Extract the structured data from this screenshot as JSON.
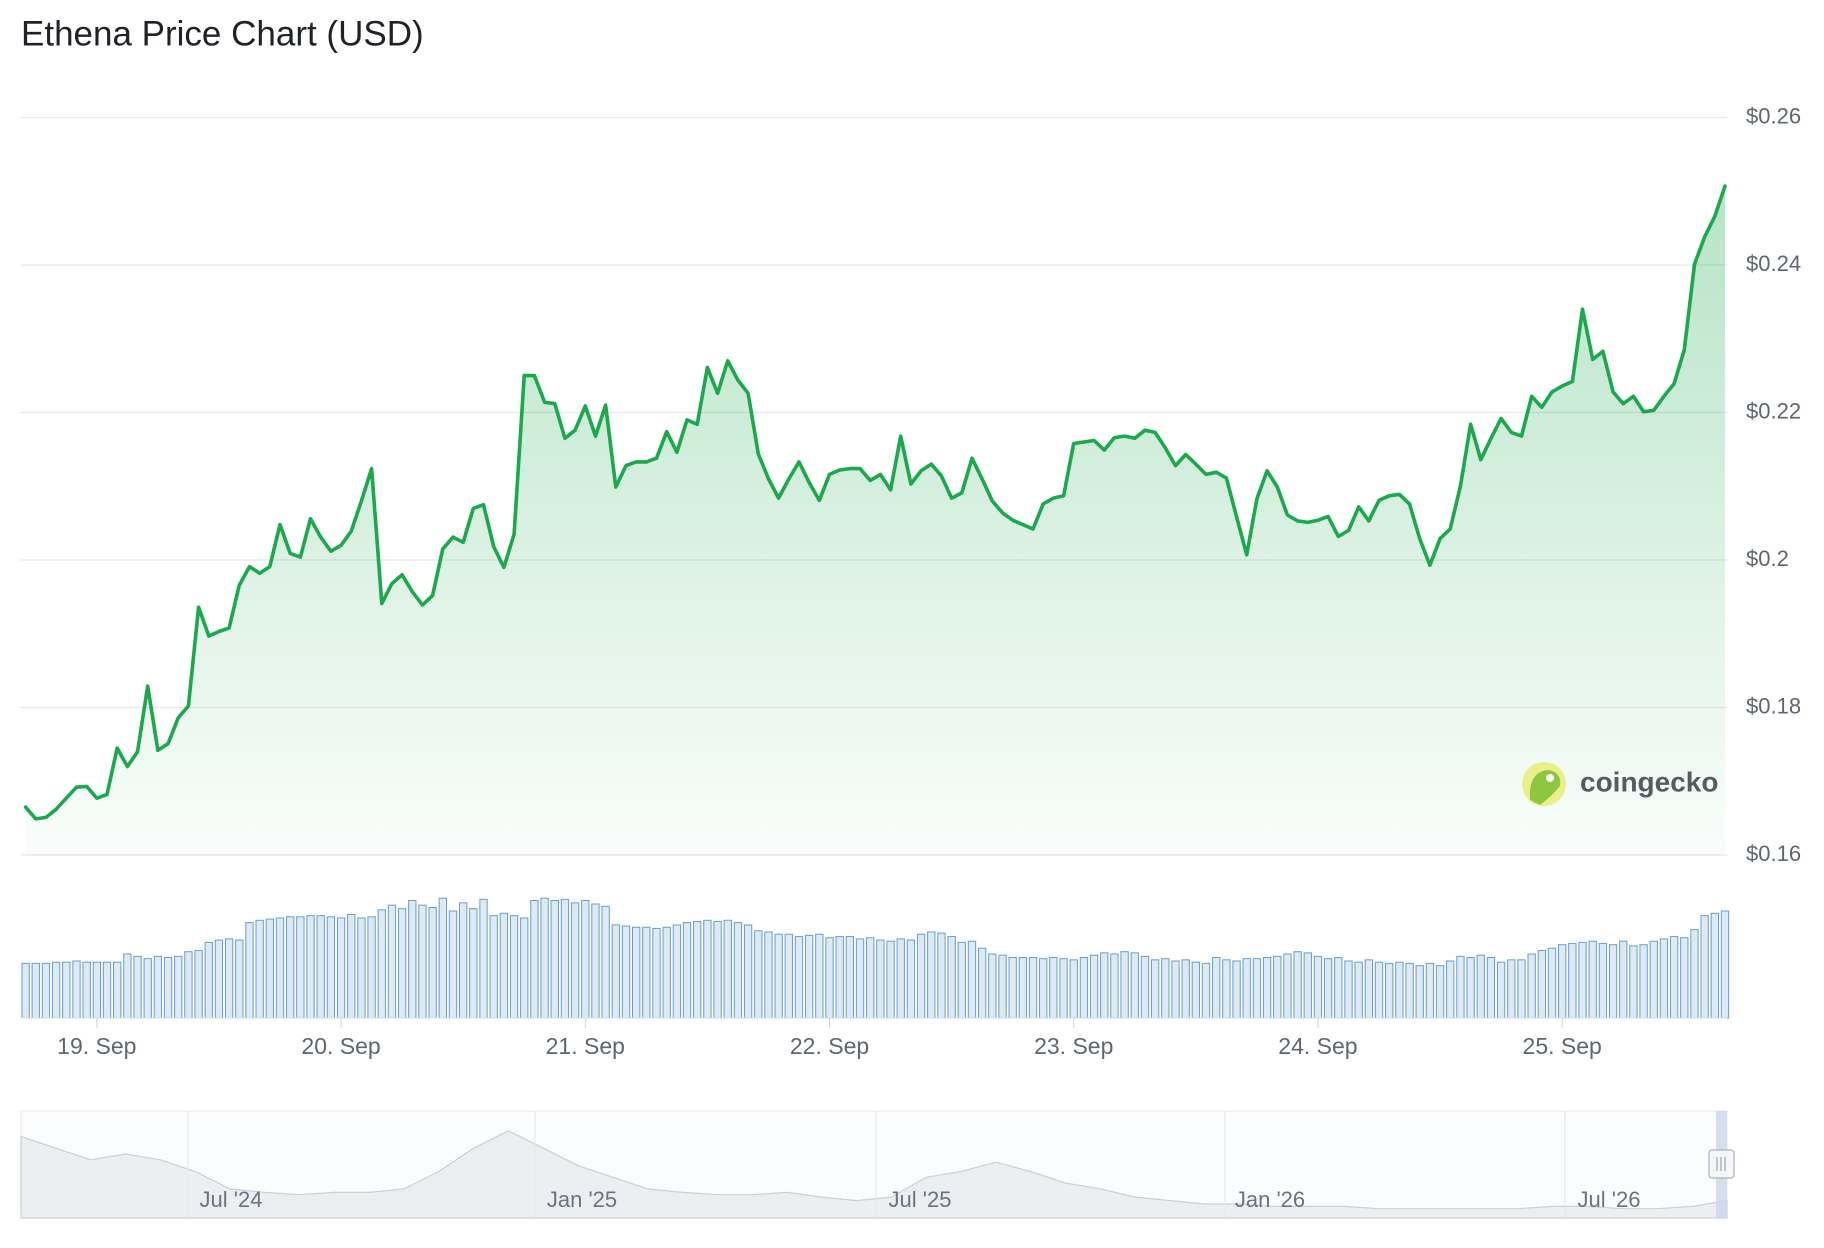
{
  "chart_data": {
    "type": "line",
    "title": "Ethena Price Chart (USD)",
    "categories": [
      null,
      null,
      null,
      null,
      null,
      null,
      null,
      "19. Sep",
      null,
      null,
      null,
      null,
      null,
      null,
      null,
      null,
      null,
      null,
      null,
      null,
      null,
      null,
      null,
      null,
      null,
      null,
      null,
      null,
      null,
      null,
      null,
      "20. Sep",
      null,
      null,
      null,
      null,
      null,
      null,
      null,
      null,
      null,
      null,
      null,
      null,
      null,
      null,
      null,
      null,
      null,
      null,
      null,
      null,
      null,
      null,
      null,
      "21. Sep",
      null,
      null,
      null,
      null,
      null,
      null,
      null,
      null,
      null,
      null,
      null,
      null,
      null,
      null,
      null,
      null,
      null,
      null,
      null,
      null,
      null,
      null,
      null,
      "22. Sep",
      null,
      null,
      null,
      null,
      null,
      null,
      null,
      null,
      null,
      null,
      null,
      null,
      null,
      null,
      null,
      null,
      null,
      null,
      null,
      null,
      null,
      null,
      null,
      "23. Sep",
      null,
      null,
      null,
      null,
      null,
      null,
      null,
      null,
      null,
      null,
      null,
      null,
      null,
      null,
      null,
      null,
      null,
      null,
      null,
      null,
      null,
      null,
      null,
      "24. Sep",
      null,
      null,
      null,
      null,
      null,
      null,
      null,
      null,
      null,
      null,
      null,
      null,
      null,
      null,
      null,
      null,
      null,
      null,
      null,
      null,
      null,
      null,
      null,
      "25. Sep",
      null,
      null,
      null,
      null,
      null,
      null,
      null,
      null,
      null,
      null,
      null,
      null,
      null,
      null,
      null,
      null
    ],
    "series": [
      {
        "color": "#1ba94c",
        "values": [
          0.1665,
          0.1649,
          0.1651,
          0.1662,
          0.1677,
          0.1692,
          0.1693,
          0.1677,
          0.1682,
          0.1745,
          0.172,
          0.174,
          0.1829,
          0.1742,
          0.1751,
          0.1786,
          0.1802,
          0.1936,
          0.1897,
          0.1903,
          0.1908,
          0.1966,
          0.1991,
          0.1982,
          0.1991,
          0.2048,
          0.2009,
          0.2004,
          0.2056,
          0.2031,
          0.2012,
          0.202,
          0.2039,
          0.208,
          0.2124,
          0.1941,
          0.1968,
          0.198,
          0.1957,
          0.1939,
          0.1952,
          0.2015,
          0.2031,
          0.2024,
          0.207,
          0.2075,
          0.2018,
          0.199,
          0.2035,
          0.225,
          0.225,
          0.2214,
          0.2212,
          0.2165,
          0.2176,
          0.2209,
          0.2168,
          0.221,
          0.2099,
          0.2128,
          0.2133,
          0.2133,
          0.2138,
          0.2174,
          0.2146,
          0.219,
          0.2184,
          0.2261,
          0.2226,
          0.227,
          0.2244,
          0.2226,
          0.2144,
          0.211,
          0.2084,
          0.211,
          0.2133,
          0.2105,
          0.2081,
          0.2116,
          0.2122,
          0.2124,
          0.2124,
          0.2108,
          0.2116,
          0.2095,
          0.2168,
          0.2103,
          0.2121,
          0.213,
          0.2114,
          0.2084,
          0.2091,
          0.2138,
          0.211,
          0.208,
          0.2064,
          0.2054,
          0.2048,
          0.2042,
          0.2076,
          0.2084,
          0.2087,
          0.2158,
          0.216,
          0.2162,
          0.2149,
          0.2166,
          0.2168,
          0.2165,
          0.2176,
          0.2173,
          0.2152,
          0.2128,
          0.2143,
          0.213,
          0.2116,
          0.2119,
          0.2111,
          0.2059,
          0.2007,
          0.2083,
          0.2121,
          0.2099,
          0.2061,
          0.2053,
          0.2051,
          0.2054,
          0.2059,
          0.2032,
          0.204,
          0.2072,
          0.2053,
          0.2081,
          0.2087,
          0.2089,
          0.2076,
          0.2029,
          0.1993,
          0.2029,
          0.2042,
          0.21,
          0.2184,
          0.2136,
          0.2165,
          0.2192,
          0.2173,
          0.2168,
          0.2222,
          0.2207,
          0.2228,
          0.2236,
          0.2242,
          0.234,
          0.2272,
          0.2283,
          0.2228,
          0.2212,
          0.2222,
          0.2201,
          0.2203,
          0.2222,
          0.2239,
          0.2285,
          0.2401,
          0.2438,
          0.2466,
          0.2507
        ]
      }
    ],
    "ylim": [
      0.16,
      0.26
    ],
    "yticks": [
      {
        "value": 0.16,
        "label": "$0.16"
      },
      {
        "value": 0.18,
        "label": "$0.18"
      },
      {
        "value": 0.2,
        "label": "$0.2"
      },
      {
        "value": 0.22,
        "label": "$0.22"
      },
      {
        "value": 0.24,
        "label": "$0.24"
      },
      {
        "value": 0.26,
        "label": "$0.26"
      }
    ],
    "grid": true,
    "watermark": "coingecko",
    "volume": {
      "color": "#6a9fca",
      "values": [
        47,
        47,
        47,
        48,
        48,
        49,
        48,
        48,
        48,
        48,
        55,
        53,
        51,
        53,
        52,
        53,
        57,
        58,
        65,
        67,
        68,
        67,
        82,
        84,
        85,
        86,
        87,
        87,
        88,
        88,
        87,
        86,
        89,
        86,
        87,
        93,
        97,
        94,
        101,
        97,
        95,
        103,
        92,
        99,
        94,
        102,
        88,
        90,
        88,
        86,
        101,
        103,
        101,
        102,
        99,
        101,
        98,
        96,
        80,
        79,
        78,
        78,
        77,
        78,
        80,
        82,
        83,
        84,
        83,
        84,
        82,
        80,
        75,
        74,
        72,
        72,
        70,
        71,
        72,
        69,
        70,
        70,
        68,
        69,
        67,
        66,
        68,
        67,
        72,
        74,
        73,
        70,
        65,
        66,
        60,
        55,
        54,
        52,
        52,
        52,
        51,
        52,
        51,
        50,
        52,
        54,
        56,
        55,
        57,
        56,
        53,
        50,
        51,
        49,
        50,
        48,
        47,
        52,
        50,
        49,
        51,
        51,
        52,
        53,
        55,
        57,
        56,
        53,
        51,
        52,
        49,
        48,
        50,
        48,
        47,
        48,
        47,
        45,
        47,
        45,
        49,
        53,
        52,
        54,
        52,
        48,
        50,
        50,
        55,
        58,
        60,
        63,
        64,
        65,
        66,
        64,
        63,
        66,
        62,
        63,
        66,
        68,
        70,
        69,
        76,
        88,
        90,
        92
      ]
    },
    "navigator": {
      "labels": [
        "Jul '24",
        "Jan '25",
        "Jul '25",
        "Jan '26",
        "Jul '26"
      ],
      "values": [
        70,
        60,
        50,
        55,
        50,
        40,
        25,
        22,
        20,
        22,
        22,
        25,
        40,
        60,
        75,
        60,
        45,
        35,
        25,
        22,
        20,
        20,
        22,
        18,
        15,
        18,
        35,
        40,
        48,
        40,
        30,
        25,
        18,
        15,
        12,
        12,
        10,
        10,
        10,
        8,
        8,
        8,
        8,
        8,
        10,
        10,
        8,
        8,
        10,
        15
      ]
    }
  }
}
